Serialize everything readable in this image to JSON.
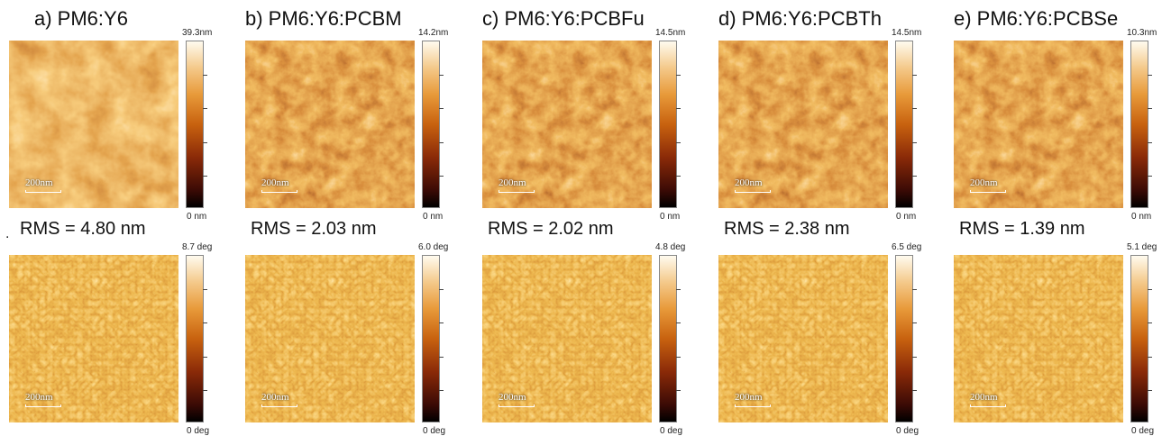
{
  "panels": [
    {
      "title": "a) PM6:Y6",
      "rms": "RMS = 4.80 nm",
      "height_max": "39.3nm",
      "height_min": "0 nm",
      "phase_max": "8.7 deg",
      "phase_min": "0 deg",
      "scale": "200nm"
    },
    {
      "title": "b) PM6:Y6:PCBM",
      "rms": "RMS = 2.03 nm",
      "height_max": "14.2nm",
      "height_min": "0 nm",
      "phase_max": "6.0 deg",
      "phase_min": "0 deg",
      "scale": "200nm"
    },
    {
      "title": "c) PM6:Y6:PCBFu",
      "rms": "RMS = 2.02 nm",
      "height_max": "14.5nm",
      "height_min": "0 nm",
      "phase_max": "4.8 deg",
      "phase_min": "0 deg",
      "scale": "200nm"
    },
    {
      "title": "d) PM6:Y6:PCBTh",
      "rms": "RMS = 2.38 nm",
      "height_max": "14.5nm",
      "height_min": "0 nm",
      "phase_max": "6.5 deg",
      "phase_min": "0 deg",
      "scale": "200nm"
    },
    {
      "title": "e) PM6:Y6:PCBSe",
      "rms": "RMS = 1.39 nm",
      "height_max": "10.3nm",
      "height_min": "0 nm",
      "phase_max": "5.1 deg",
      "phase_min": "0 deg",
      "scale": "200nm"
    }
  ],
  "stray_mark": ".",
  "colors": {
    "dark": "#3a0a05",
    "mid": "#c8620f",
    "light": "#fffbef"
  }
}
